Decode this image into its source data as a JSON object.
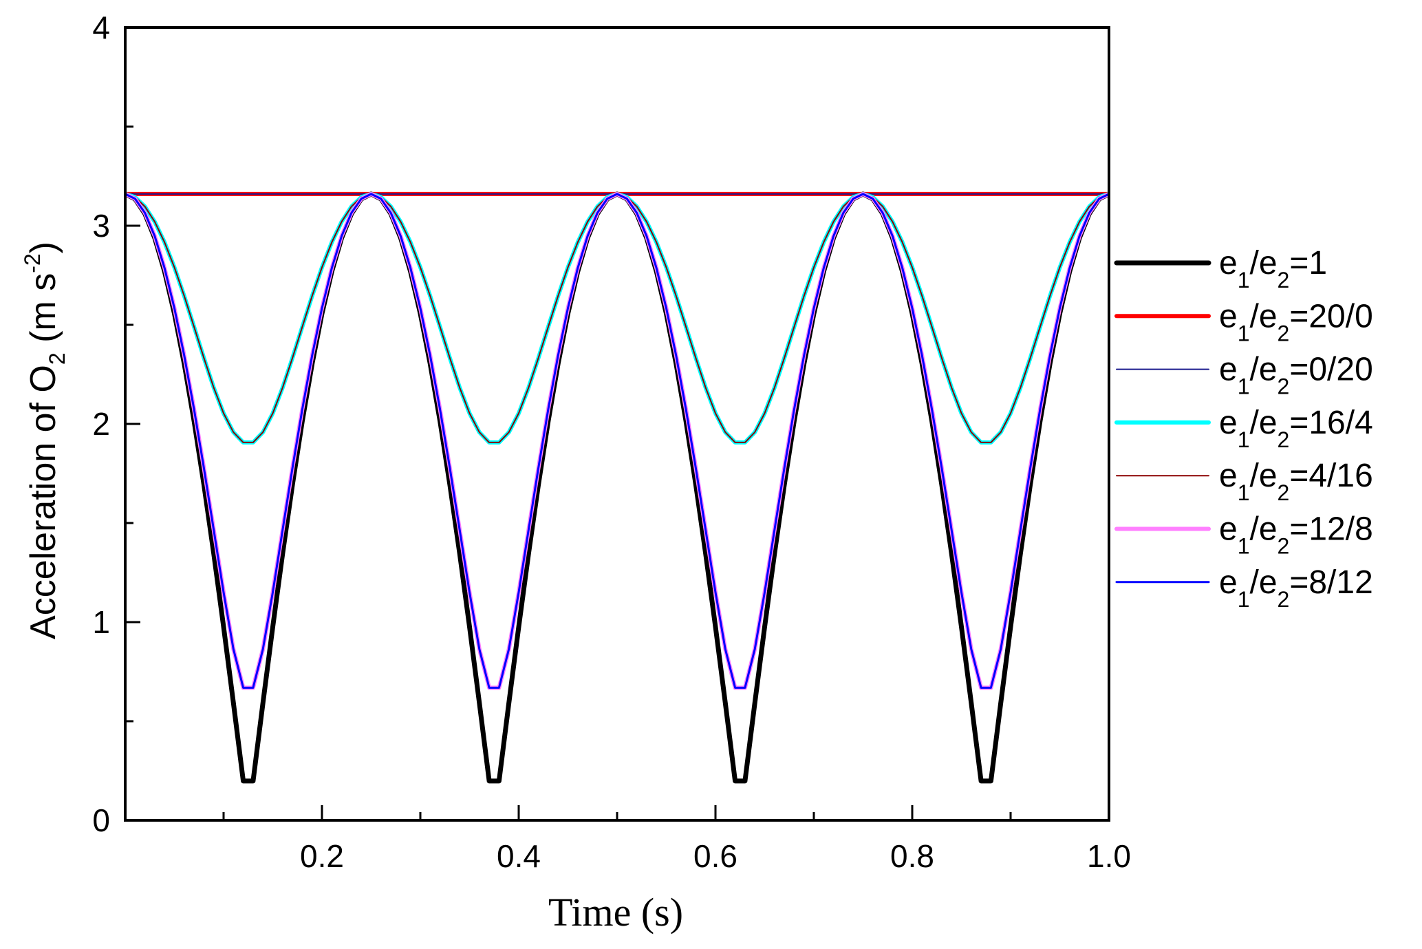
{
  "chart_data": {
    "type": "line",
    "title": "",
    "xlabel": "Time (s)",
    "ylabel_main": "Acceleration of O",
    "ylabel_sub": "2",
    "ylabel_unit_open": " (m s",
    "ylabel_unit_sup": "-2",
    "ylabel_unit_close": ")",
    "xlim": [
      0,
      1.0
    ],
    "ylim": [
      0,
      4
    ],
    "x_ticks": [
      0.2,
      0.4,
      0.6,
      0.8,
      1.0
    ],
    "x_tick_labels": [
      "0.2",
      "0.4",
      "0.6",
      "0.8",
      "1.0"
    ],
    "x_minor_step": 0.1,
    "y_ticks": [
      0,
      1,
      2,
      3,
      4
    ],
    "y_tick_labels": [
      "0",
      "1",
      "2",
      "3",
      "4"
    ],
    "y_minor_step": 0.5,
    "grid": false,
    "legend_position": "right",
    "period": 0.25,
    "series": [
      {
        "name": "e1/e2=1",
        "label_pre": "e",
        "s1": "1",
        "mid": "/e",
        "s2": "2",
        "label_post": "=1",
        "color": "#000000",
        "width": 7,
        "max": 3.16,
        "min": 0.0
      },
      {
        "name": "e1/e2=20/0",
        "label_pre": "e",
        "s1": "1",
        "mid": "/e",
        "s2": "2",
        "label_post": "=20/0",
        "color": "#ff0000",
        "width": 6,
        "max": 3.16,
        "min": 3.16
      },
      {
        "name": "e1/e2=0/20",
        "label_pre": "e",
        "s1": "1",
        "mid": "/e",
        "s2": "2",
        "label_post": "=0/20",
        "color": "#1a1a8c",
        "width": 2,
        "max": 3.16,
        "min": 3.16
      },
      {
        "name": "e1/e2=16/4",
        "label_pre": "e",
        "s1": "1",
        "mid": "/e",
        "s2": "2",
        "label_post": "=16/4",
        "color": "#00ffff",
        "width": 6,
        "max": 3.16,
        "min": 1.9
      },
      {
        "name": "e1/e2=4/16",
        "label_pre": "e",
        "s1": "1",
        "mid": "/e",
        "s2": "2",
        "label_post": "=4/16",
        "color": "#8b0000",
        "width": 2,
        "max": 3.16,
        "min": 1.9
      },
      {
        "name": "e1/e2=12/8",
        "label_pre": "e",
        "s1": "1",
        "mid": "/e",
        "s2": "2",
        "label_post": "=12/8",
        "color": "#ff80ff",
        "width": 6,
        "max": 3.16,
        "min": 0.64
      },
      {
        "name": "e1/e2=8/12",
        "label_pre": "e",
        "s1": "1",
        "mid": "/e",
        "s2": "2",
        "label_post": "=8/12",
        "color": "#0000ff",
        "width": 3,
        "max": 3.16,
        "min": 0.64
      }
    ]
  }
}
